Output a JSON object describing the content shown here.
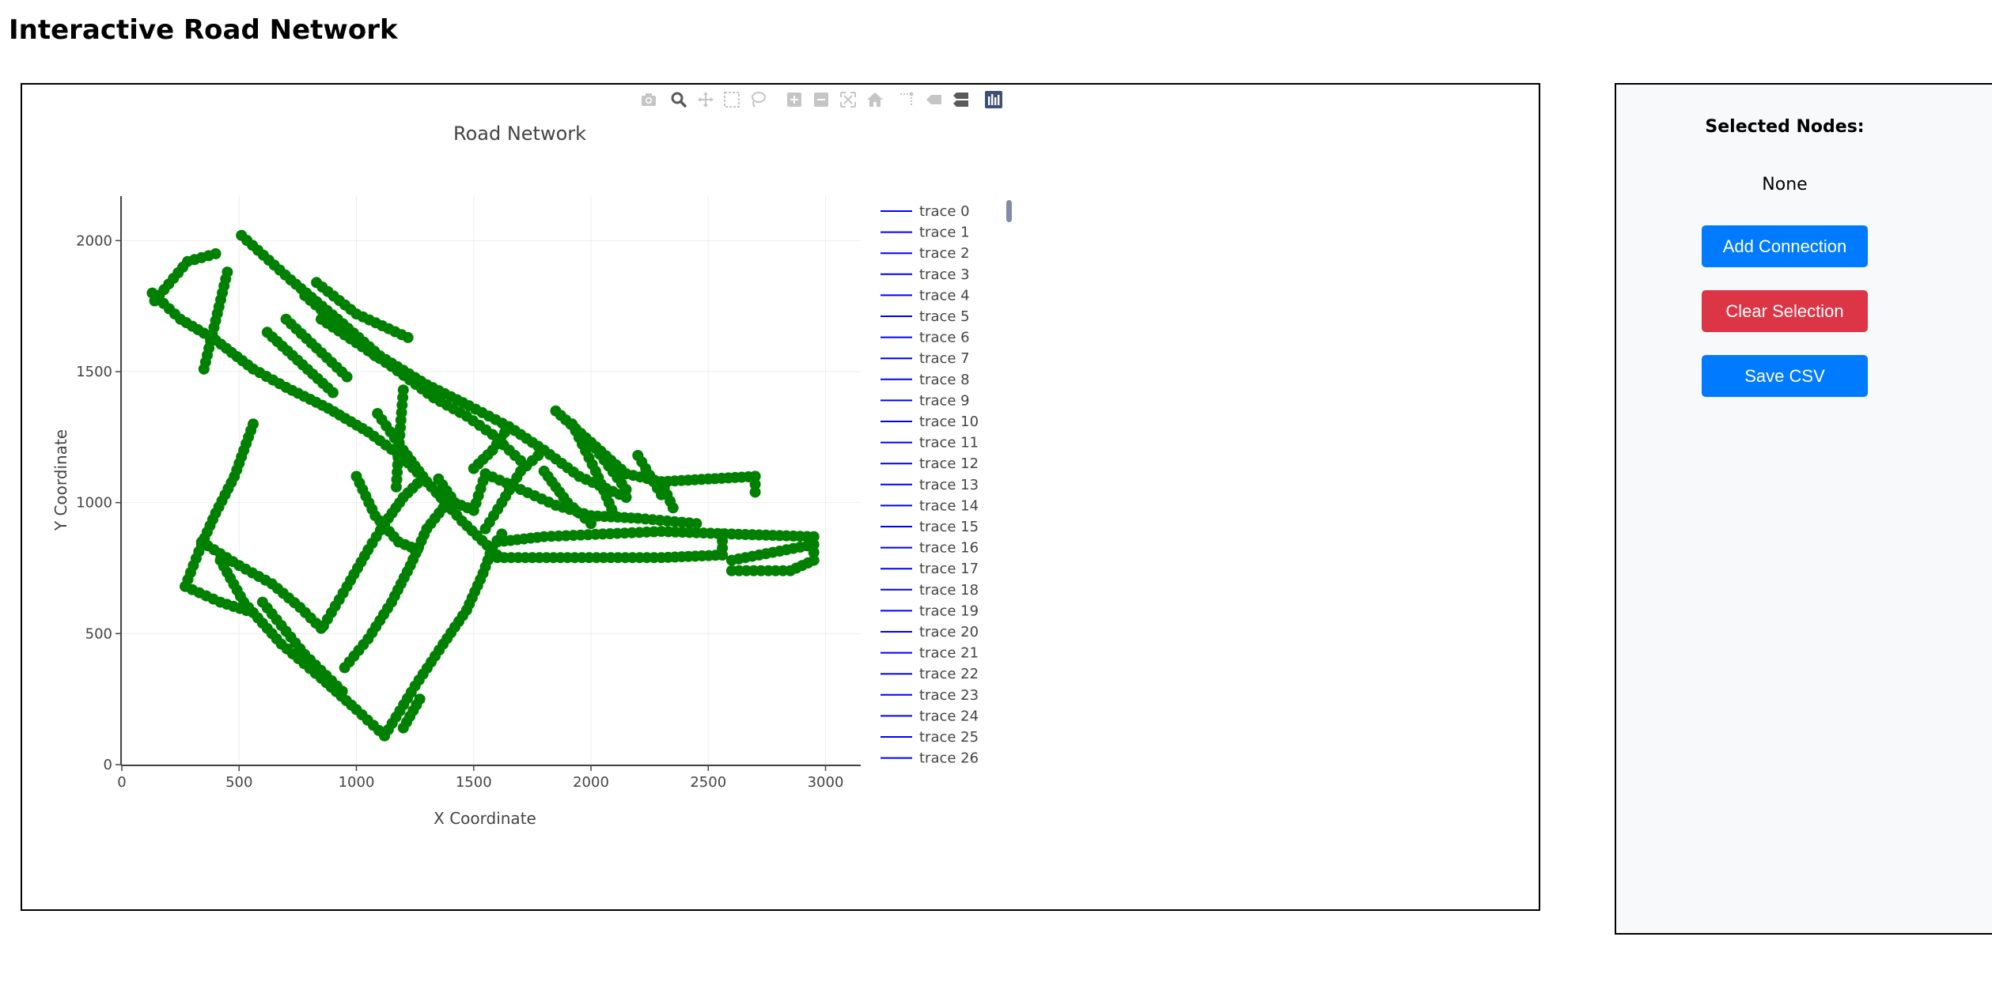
{
  "page": {
    "title": "Interactive Road Network"
  },
  "modebar": {
    "icons": [
      {
        "name": "camera-icon",
        "color": "#c5c5c5"
      },
      {
        "name": "zoom-icon",
        "color": "#5a5a5a"
      },
      {
        "name": "pan-icon",
        "color": "#c5c5c5"
      },
      {
        "name": "box-select-icon",
        "color": "#c5c5c5"
      },
      {
        "name": "lasso-select-icon",
        "color": "#c5c5c5"
      },
      {
        "name": "zoom-in-icon",
        "color": "#c5c5c5"
      },
      {
        "name": "zoom-out-icon",
        "color": "#c5c5c5"
      },
      {
        "name": "autoscale-icon",
        "color": "#c5c5c5"
      },
      {
        "name": "reset-axes-icon",
        "color": "#c5c5c5"
      },
      {
        "name": "spike-lines-icon",
        "color": "#c5c5c5"
      },
      {
        "name": "hover-closest-icon",
        "color": "#c5c5c5"
      },
      {
        "name": "hover-compare-icon",
        "color": "#5a5a5a"
      },
      {
        "name": "plotly-logo-icon",
        "color": "#3f4f75"
      }
    ]
  },
  "chart_data": {
    "type": "scatter",
    "title": "Road Network",
    "xlabel": "X Coordinate",
    "ylabel": "Y Coordinate",
    "xlim": [
      0,
      3150
    ],
    "ylim": [
      0,
      2170
    ],
    "xticks": [
      0,
      500,
      1000,
      1500,
      2000,
      2500,
      3000
    ],
    "yticks": [
      0,
      500,
      1000,
      1500,
      2000
    ],
    "grid": true,
    "legend_position": "right",
    "colors": {
      "node": "#008000",
      "edge": "#0000ff"
    },
    "legend": [
      "trace 0",
      "trace 1",
      "trace 2",
      "trace 3",
      "trace 4",
      "trace 5",
      "trace 6",
      "trace 7",
      "trace 8",
      "trace 9",
      "trace 10",
      "trace 11",
      "trace 12",
      "trace 13",
      "trace 14",
      "trace 15",
      "trace 16",
      "trace 17",
      "trace 18",
      "trace 19",
      "trace 20",
      "trace 21",
      "trace 22",
      "trace 23",
      "trace 24",
      "trace 25",
      "trace 26"
    ],
    "roads": [
      [
        [
          130,
          1800
        ],
        [
          250,
          1700
        ],
        [
          400,
          1620
        ],
        [
          560,
          1510
        ],
        [
          700,
          1440
        ],
        [
          880,
          1360
        ],
        [
          1050,
          1270
        ],
        [
          1200,
          1170
        ],
        [
          1320,
          1060
        ],
        [
          1450,
          930
        ],
        [
          1600,
          800
        ]
      ],
      [
        [
          140,
          1770
        ],
        [
          280,
          1920
        ],
        [
          400,
          1950
        ]
      ],
      [
        [
          350,
          1510
        ],
        [
          450,
          1880
        ]
      ],
      [
        [
          510,
          2020
        ],
        [
          720,
          1850
        ],
        [
          920,
          1700
        ],
        [
          1100,
          1560
        ],
        [
          1300,
          1450
        ],
        [
          1480,
          1370
        ],
        [
          1650,
          1290
        ],
        [
          1800,
          1200
        ],
        [
          1950,
          1100
        ],
        [
          2150,
          1020
        ]
      ],
      [
        [
          830,
          1840
        ],
        [
          1000,
          1720
        ],
        [
          1220,
          1630
        ]
      ],
      [
        [
          780,
          1790
        ],
        [
          1080,
          1560
        ]
      ],
      [
        [
          700,
          1700
        ],
        [
          960,
          1480
        ]
      ],
      [
        [
          620,
          1650
        ],
        [
          900,
          1420
        ]
      ],
      [
        [
          850,
          1700
        ],
        [
          1150,
          1520
        ],
        [
          1330,
          1400
        ]
      ],
      [
        [
          560,
          1300
        ],
        [
          480,
          1100
        ],
        [
          400,
          960
        ],
        [
          340,
          840
        ],
        [
          270,
          680
        ]
      ],
      [
        [
          270,
          680
        ],
        [
          420,
          620
        ],
        [
          560,
          580
        ]
      ],
      [
        [
          340,
          850
        ],
        [
          500,
          760
        ],
        [
          640,
          690
        ],
        [
          760,
          600
        ],
        [
          850,
          520
        ]
      ],
      [
        [
          420,
          780
        ],
        [
          520,
          620
        ],
        [
          680,
          460
        ],
        [
          850,
          330
        ],
        [
          1000,
          210
        ],
        [
          1120,
          110
        ]
      ],
      [
        [
          1120,
          110
        ],
        [
          1250,
          300
        ],
        [
          1370,
          460
        ],
        [
          1470,
          590
        ],
        [
          1540,
          730
        ],
        [
          1580,
          830
        ],
        [
          1620,
          880
        ]
      ],
      [
        [
          600,
          620
        ],
        [
          780,
          420
        ],
        [
          940,
          280
        ]
      ],
      [
        [
          1200,
          140
        ],
        [
          1270,
          250
        ]
      ],
      [
        [
          860,
          530
        ],
        [
          960,
          680
        ],
        [
          1050,
          820
        ],
        [
          1120,
          920
        ],
        [
          1200,
          1020
        ],
        [
          1280,
          1090
        ]
      ],
      [
        [
          950,
          370
        ],
        [
          1050,
          480
        ],
        [
          1150,
          620
        ],
        [
          1230,
          760
        ],
        [
          1300,
          900
        ],
        [
          1370,
          980
        ]
      ],
      [
        [
          1600,
          850
        ],
        [
          1800,
          870
        ],
        [
          2050,
          880
        ],
        [
          2300,
          890
        ],
        [
          2600,
          880
        ],
        [
          2950,
          870
        ]
      ],
      [
        [
          1600,
          790
        ],
        [
          1900,
          790
        ],
        [
          2300,
          790
        ],
        [
          2560,
          800
        ]
      ],
      [
        [
          2560,
          800
        ],
        [
          2560,
          880
        ]
      ],
      [
        [
          2600,
          780
        ],
        [
          2950,
          840
        ],
        [
          2950,
          780
        ],
        [
          2850,
          740
        ],
        [
          2600,
          740
        ]
      ],
      [
        [
          1550,
          1110
        ],
        [
          1700,
          1050
        ],
        [
          1850,
          990
        ],
        [
          2000,
          950
        ],
        [
          2200,
          940
        ],
        [
          2450,
          920
        ]
      ],
      [
        [
          1550,
          1110
        ],
        [
          1500,
          970
        ],
        [
          1420,
          1000
        ],
        [
          1350,
          1090
        ]
      ],
      [
        [
          1200,
          1430
        ],
        [
          1180,
          1200
        ],
        [
          1170,
          1060
        ]
      ],
      [
        [
          1330,
          1400
        ],
        [
          1470,
          1330
        ],
        [
          1580,
          1260
        ],
        [
          1700,
          1160
        ]
      ],
      [
        [
          1850,
          1350
        ],
        [
          2000,
          1230
        ],
        [
          2150,
          1110
        ],
        [
          2300,
          1080
        ],
        [
          2500,
          1090
        ],
        [
          2700,
          1100
        ]
      ],
      [
        [
          2700,
          1100
        ],
        [
          2700,
          1040
        ]
      ],
      [
        [
          1800,
          1120
        ],
        [
          1900,
          1000
        ],
        [
          2000,
          920
        ]
      ],
      [
        [
          1920,
          1300
        ],
        [
          2020,
          1120
        ],
        [
          2100,
          950
        ]
      ],
      [
        [
          2000,
          1230
        ],
        [
          2150,
          1050
        ]
      ],
      [
        [
          2200,
          1180
        ],
        [
          2300,
          1030
        ]
      ],
      [
        [
          2300,
          1080
        ],
        [
          2350,
          980
        ]
      ],
      [
        [
          1650,
          1290
        ],
        [
          1580,
          1200
        ],
        [
          1500,
          1130
        ]
      ],
      [
        [
          1000,
          1100
        ],
        [
          1080,
          950
        ],
        [
          1180,
          850
        ],
        [
          1260,
          820
        ]
      ],
      [
        [
          1090,
          1340
        ],
        [
          1200,
          1200
        ],
        [
          1300,
          1080
        ],
        [
          1400,
          980
        ]
      ],
      [
        [
          1800,
          1200
        ],
        [
          1700,
          1120
        ],
        [
          1620,
          1000
        ],
        [
          1550,
          900
        ]
      ]
    ]
  },
  "side_panel": {
    "heading": "Selected Nodes:",
    "selected": "None",
    "buttons": {
      "add": "Add Connection",
      "clear": "Clear Selection",
      "save": "Save CSV"
    },
    "colors": {
      "primary": "#007bff",
      "danger": "#dc3545"
    }
  }
}
